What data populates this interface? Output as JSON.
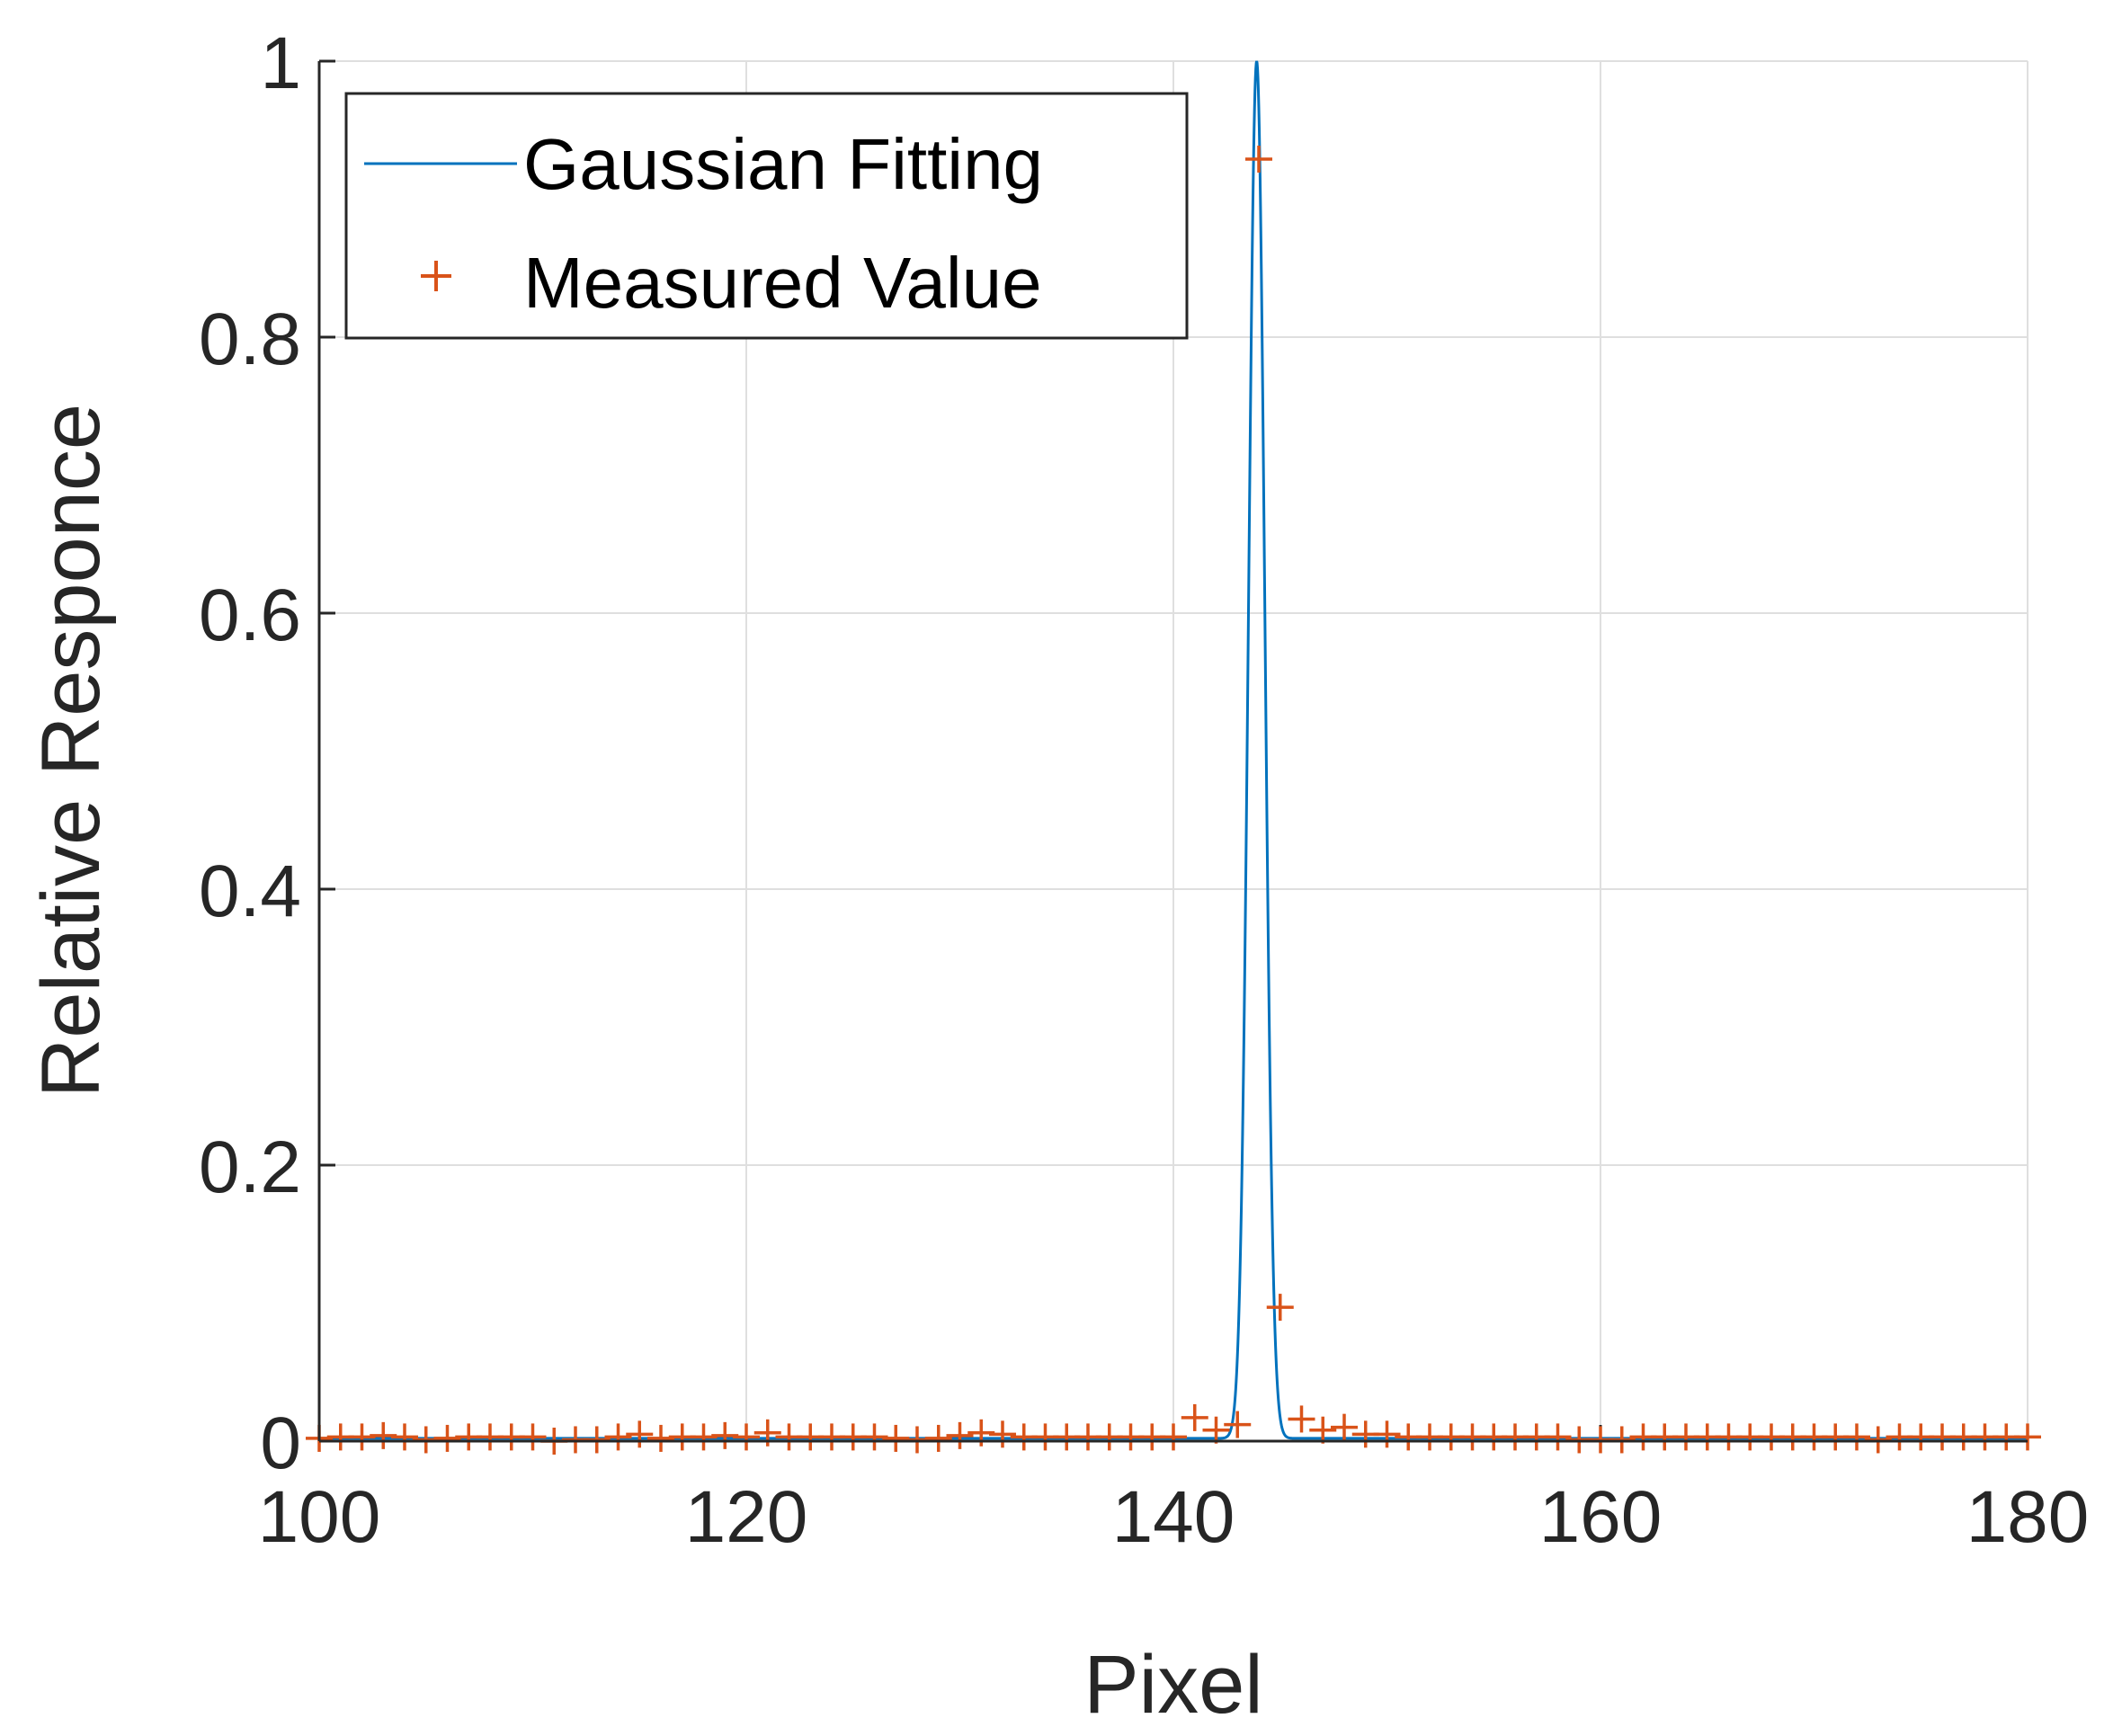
{
  "chart_data": {
    "type": "line",
    "xlabel": "Pixel",
    "ylabel": "Relative Responce",
    "xlim": [
      100,
      180
    ],
    "ylim": [
      0,
      1
    ],
    "xticks": [
      "100",
      "120",
      "140",
      "160",
      "180"
    ],
    "yticks": [
      "0",
      "0.2",
      "0.4",
      "0.6",
      "0.8",
      "1"
    ],
    "grid": true,
    "legend_position": "top-left",
    "series": [
      {
        "name": "Gaussian Fitting",
        "style": "line",
        "color": "#0072BD",
        "peak_x": 143.9,
        "peak_y": 1.0,
        "sigma": 0.38,
        "baseline": 0.002
      },
      {
        "name": "Measured Value",
        "style": "plus-marker",
        "color": "#D95319",
        "x": [
          100,
          101,
          102,
          103,
          104,
          105,
          106,
          107,
          108,
          109,
          110,
          111,
          112,
          113,
          114,
          115,
          116,
          117,
          118,
          119,
          120,
          121,
          122,
          123,
          124,
          125,
          126,
          127,
          128,
          129,
          130,
          131,
          132,
          133,
          134,
          135,
          136,
          137,
          138,
          139,
          140,
          141,
          142,
          143,
          144,
          145,
          146,
          147,
          148,
          149,
          150,
          151,
          152,
          153,
          154,
          155,
          156,
          157,
          158,
          159,
          160,
          161,
          162,
          163,
          164,
          165,
          166,
          167,
          168,
          169,
          170,
          171,
          172,
          173,
          174,
          175,
          176,
          177,
          178,
          179,
          180
        ],
        "y": [
          0.002,
          0.003,
          0.003,
          0.004,
          0.003,
          0.001,
          0.002,
          0.003,
          0.003,
          0.003,
          0.003,
          0.0,
          0.001,
          0.001,
          0.003,
          0.005,
          0.002,
          0.003,
          0.003,
          0.004,
          0.003,
          0.006,
          0.003,
          0.003,
          0.003,
          0.003,
          0.003,
          0.002,
          0.001,
          0.002,
          0.004,
          0.006,
          0.005,
          0.003,
          0.003,
          0.003,
          0.003,
          0.003,
          0.003,
          0.003,
          0.003,
          0.017,
          0.008,
          0.012,
          0.929,
          0.097,
          0.016,
          0.008,
          0.01,
          0.005,
          0.005,
          0.003,
          0.003,
          0.003,
          0.003,
          0.003,
          0.003,
          0.003,
          0.003,
          0.001,
          0.001,
          0.001,
          0.003,
          0.003,
          0.003,
          0.003,
          0.003,
          0.003,
          0.003,
          0.003,
          0.003,
          0.003,
          0.003,
          0.001,
          0.003,
          0.003,
          0.003,
          0.003,
          0.003,
          0.003,
          0.003
        ]
      }
    ]
  }
}
